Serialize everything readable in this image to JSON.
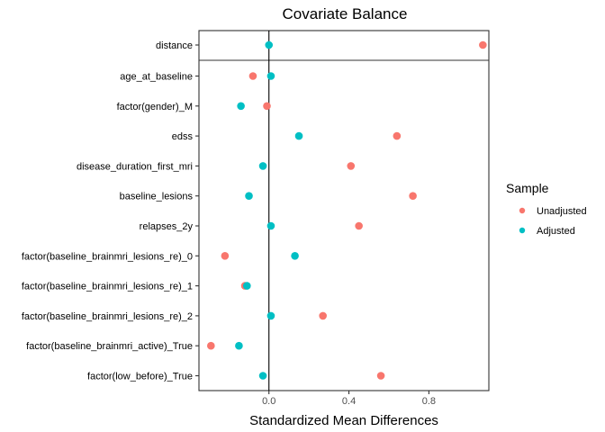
{
  "chart_data": {
    "type": "scatter",
    "title": "Covariate Balance",
    "xlabel": "Standardized Mean Differences",
    "ylabel": "",
    "xlim": [
      -0.35,
      1.1
    ],
    "x_ticks": [
      0.0,
      0.4,
      0.8
    ],
    "x_tick_labels": [
      "0.0",
      "0.4",
      "0.8"
    ],
    "reference_line_x": 0,
    "grid": false,
    "legend_position": "right",
    "legend_title": "Sample",
    "categories": [
      "distance",
      "age_at_baseline",
      "factor(gender)_M",
      "edss",
      "disease_duration_first_mri",
      "baseline_lesions",
      "relapses_2y",
      "factor(baseline_brainmri_lesions_re)_0",
      "factor(baseline_brainmri_lesions_re)_1",
      "factor(baseline_brainmri_lesions_re)_2",
      "factor(baseline_brainmri_active)_True",
      "factor(low_before)_True"
    ],
    "series": [
      {
        "name": "Unadjusted",
        "color": "#F8766D",
        "values": [
          1.07,
          -0.08,
          -0.01,
          0.64,
          0.41,
          0.72,
          0.45,
          -0.22,
          -0.12,
          0.27,
          -0.29,
          0.56
        ]
      },
      {
        "name": "Adjusted",
        "color": "#00BFC4",
        "values": [
          0.0,
          0.01,
          -0.14,
          0.15,
          -0.03,
          -0.1,
          0.01,
          0.13,
          -0.11,
          0.01,
          -0.15,
          -0.03
        ]
      }
    ]
  }
}
